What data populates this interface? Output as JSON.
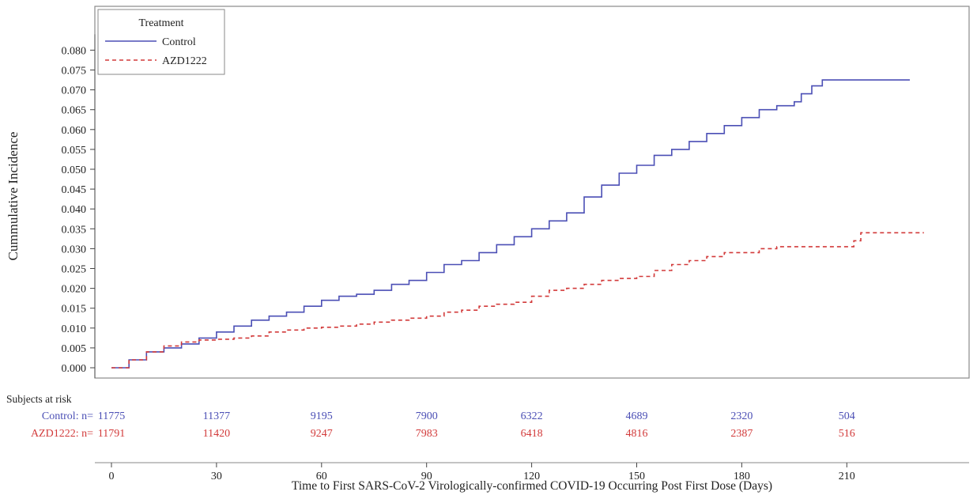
{
  "chart_data": {
    "type": "line",
    "title": "",
    "xlabel": "Time to First SARS-CoV-2 Virologically-confirmed COVID-19 Occurring Post First Dose (Days)",
    "ylabel": "Cummulative Incidence",
    "xlim": [
      0,
      235
    ],
    "ylim": [
      0,
      0.084
    ],
    "x_ticks": [
      0,
      30,
      60,
      90,
      120,
      150,
      180,
      210
    ],
    "y_ticks": [
      0.0,
      0.005,
      0.01,
      0.015,
      0.02,
      0.025,
      0.03,
      0.035,
      0.04,
      0.045,
      0.05,
      0.055,
      0.06,
      0.065,
      0.07,
      0.075,
      0.08
    ],
    "y_tick_labels": [
      "0.000",
      "0.005",
      "0.010",
      "0.015",
      "0.020",
      "0.025",
      "0.030",
      "0.035",
      "0.040",
      "0.045",
      "0.050",
      "0.055",
      "0.060",
      "0.065",
      "0.070",
      "0.075",
      "0.080"
    ],
    "grid": false,
    "legend": {
      "title": "Treatment",
      "position": "top-left"
    },
    "series": [
      {
        "name": "Control",
        "color": "#4b4fb5",
        "dash": "solid",
        "x": [
          0,
          5,
          10,
          15,
          20,
          25,
          30,
          35,
          40,
          45,
          50,
          55,
          60,
          65,
          70,
          75,
          80,
          85,
          90,
          95,
          100,
          105,
          110,
          115,
          120,
          125,
          130,
          135,
          140,
          145,
          150,
          155,
          160,
          165,
          170,
          175,
          180,
          185,
          190,
          195,
          197,
          200,
          203,
          210,
          220,
          228
        ],
        "y": [
          0,
          0.002,
          0.004,
          0.005,
          0.006,
          0.0075,
          0.009,
          0.0105,
          0.012,
          0.013,
          0.014,
          0.0155,
          0.017,
          0.018,
          0.0185,
          0.0195,
          0.021,
          0.022,
          0.024,
          0.026,
          0.027,
          0.029,
          0.031,
          0.033,
          0.035,
          0.037,
          0.039,
          0.043,
          0.046,
          0.049,
          0.051,
          0.0535,
          0.055,
          0.057,
          0.059,
          0.061,
          0.063,
          0.065,
          0.066,
          0.067,
          0.069,
          0.071,
          0.0725,
          0.0725,
          0.0725,
          0.0725
        ]
      },
      {
        "name": "AZD1222",
        "color": "#d23a3a",
        "dash": "dashed",
        "x": [
          0,
          5,
          10,
          15,
          20,
          25,
          30,
          35,
          40,
          45,
          50,
          55,
          60,
          65,
          70,
          75,
          80,
          85,
          90,
          95,
          100,
          105,
          110,
          115,
          120,
          125,
          130,
          135,
          140,
          145,
          150,
          155,
          160,
          165,
          170,
          175,
          180,
          185,
          190,
          200,
          210,
          212,
          214,
          220,
          232
        ],
        "y": [
          0,
          0.002,
          0.004,
          0.0055,
          0.0065,
          0.007,
          0.0072,
          0.0075,
          0.008,
          0.009,
          0.0095,
          0.01,
          0.0102,
          0.0105,
          0.011,
          0.0115,
          0.012,
          0.0125,
          0.013,
          0.014,
          0.0145,
          0.0155,
          0.016,
          0.0165,
          0.018,
          0.0195,
          0.02,
          0.021,
          0.022,
          0.0225,
          0.023,
          0.0245,
          0.026,
          0.027,
          0.028,
          0.029,
          0.029,
          0.03,
          0.0305,
          0.0305,
          0.0305,
          0.032,
          0.034,
          0.034,
          0.034
        ]
      }
    ],
    "at_risk": {
      "heading": "Subjects at risk",
      "x": [
        0,
        30,
        60,
        90,
        120,
        150,
        180,
        210
      ],
      "rows": [
        {
          "label": "Control: n=",
          "color": "#4b4fb5",
          "values": [
            "11775",
            "11377",
            "9195",
            "7900",
            "6322",
            "4689",
            "2320",
            "504"
          ]
        },
        {
          "label": "AZD1222: n=",
          "color": "#d23a3a",
          "values": [
            "11791",
            "11420",
            "9247",
            "7983",
            "6418",
            "4816",
            "2387",
            "516"
          ]
        }
      ]
    }
  }
}
